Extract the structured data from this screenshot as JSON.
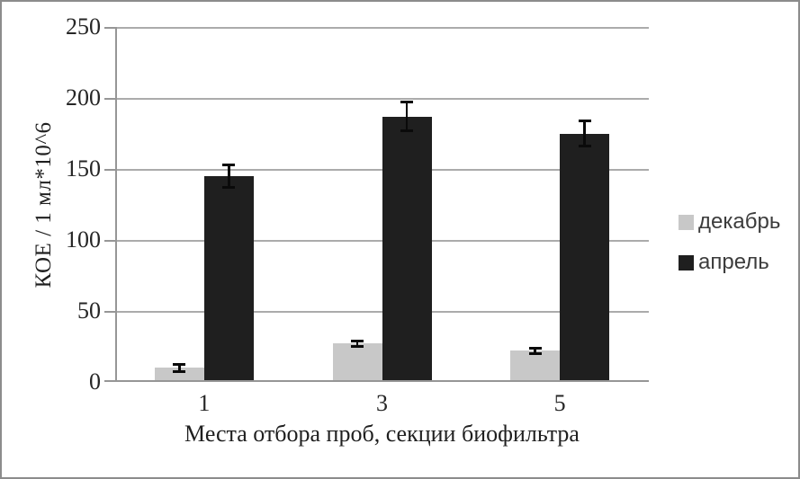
{
  "chart_data": {
    "type": "bar",
    "title": "",
    "categories": [
      "1",
      "3",
      "5"
    ],
    "series": [
      {
        "name": "декабрь",
        "slug": "dekabr",
        "color": "#c8c8c8",
        "values": [
          10,
          27,
          22
        ],
        "errors": [
          2.5,
          2,
          2
        ]
      },
      {
        "name": "апрель",
        "slug": "aprel",
        "color": "#1f1f1f",
        "values": [
          145,
          187,
          175
        ],
        "errors": [
          8,
          10,
          9
        ]
      }
    ],
    "xlabel": "Места отбора проб, секции биофильтра",
    "ylabel": "КОЕ / 1 мл*10^6",
    "ylim": [
      0,
      250
    ],
    "yticks": [
      0,
      50,
      100,
      150,
      200,
      250
    ],
    "grid": true,
    "legend_position": "right",
    "error_bar_color": "#000000"
  },
  "colors": {
    "gridline": "#ababab",
    "axis": "#969696",
    "tick_text": "#262626",
    "legend_text": "#3c3c3c",
    "frame_border": "#8c8c8c",
    "background": "#ffffff"
  }
}
